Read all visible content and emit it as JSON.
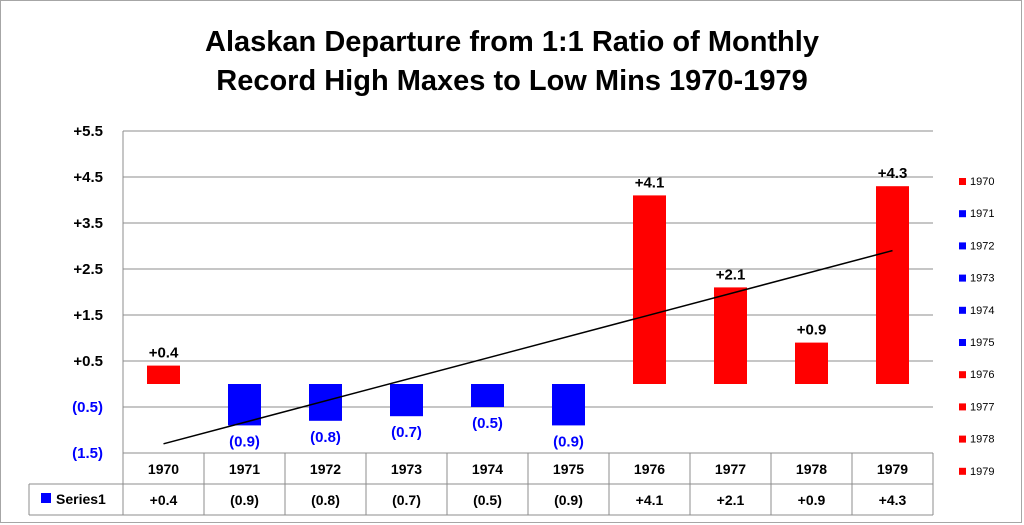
{
  "chart_data": {
    "type": "bar",
    "title_lines": [
      "Alaskan Departure from 1:1 Ratio of Monthly",
      "Record High Maxes to Low Mins 1970-1979"
    ],
    "categories": [
      "1970",
      "1971",
      "1972",
      "1973",
      "1974",
      "1975",
      "1976",
      "1977",
      "1978",
      "1979"
    ],
    "series": [
      {
        "name": "Series1",
        "values": [
          0.4,
          -0.9,
          -0.8,
          -0.7,
          -0.5,
          -0.9,
          4.1,
          2.1,
          0.9,
          4.3
        ],
        "labels": [
          "+0.4",
          "(0.9)",
          "(0.8)",
          "(0.7)",
          "(0.5)",
          "(0.9)",
          "+4.1",
          "+2.1",
          "+0.9",
          "+4.3"
        ]
      }
    ],
    "y_ticks": [
      5.5,
      4.5,
      3.5,
      2.5,
      1.5,
      0.5,
      -0.5,
      -1.5
    ],
    "y_tick_labels": [
      "+5.5",
      "+4.5",
      "+3.5",
      "+2.5",
      "+1.5",
      "+0.5",
      "(0.5)",
      "(1.5)"
    ],
    "ylim": [
      -1.5,
      5.5
    ],
    "grid": true,
    "trendline": {
      "type": "linear",
      "start": -1.3,
      "end": 2.9
    },
    "colors": {
      "positive": "#ff0000",
      "negative": "#0000ff",
      "negative_tick_label": "#0000ff",
      "trendline": "#000000"
    },
    "legend": {
      "placement": "right",
      "entries": [
        "1970",
        "1971",
        "1972",
        "1973",
        "1974",
        "1975",
        "1976",
        "1977",
        "1978",
        "1979"
      ]
    },
    "data_table": {
      "series_label": "Series1",
      "values": [
        "+0.4",
        "(0.9)",
        "(0.8)",
        "(0.7)",
        "(0.5)",
        "(0.9)",
        "+4.1",
        "+2.1",
        "+0.9",
        "+4.3"
      ]
    }
  }
}
